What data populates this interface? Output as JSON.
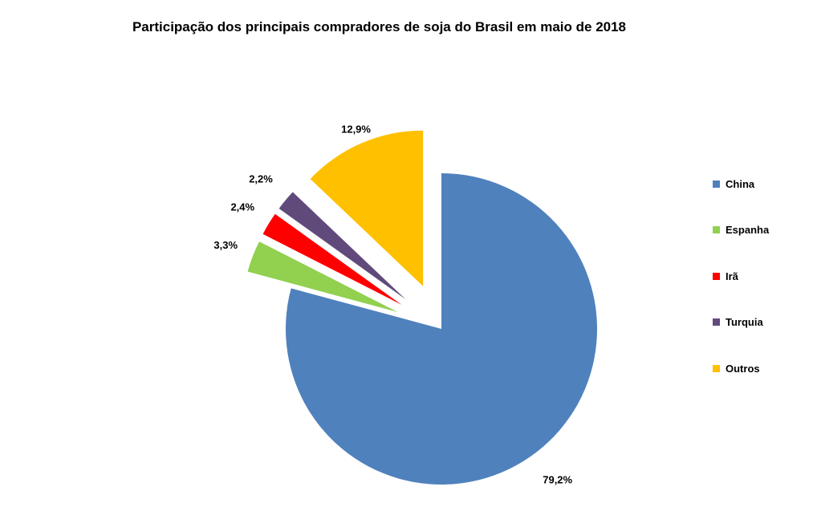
{
  "chart_data": {
    "type": "pie",
    "title": "Participação dos principais compradores de soja do Brasil em maio de 2018",
    "categories": [
      "China",
      "Espanha",
      "Irã",
      "Turquia",
      "Outros"
    ],
    "values": [
      79.2,
      3.3,
      2.4,
      2.2,
      12.9
    ],
    "value_labels": [
      "79,2%",
      "3,3%",
      "2,4%",
      "2,2%",
      "12,9%"
    ],
    "unit": "%",
    "colors": [
      "#4F81BD",
      "#92D050",
      "#FF0000",
      "#604A7B",
      "#FFC000"
    ],
    "exploded": [
      false,
      true,
      true,
      true,
      true
    ],
    "start": "top, clockwise",
    "legend_position": "right"
  }
}
